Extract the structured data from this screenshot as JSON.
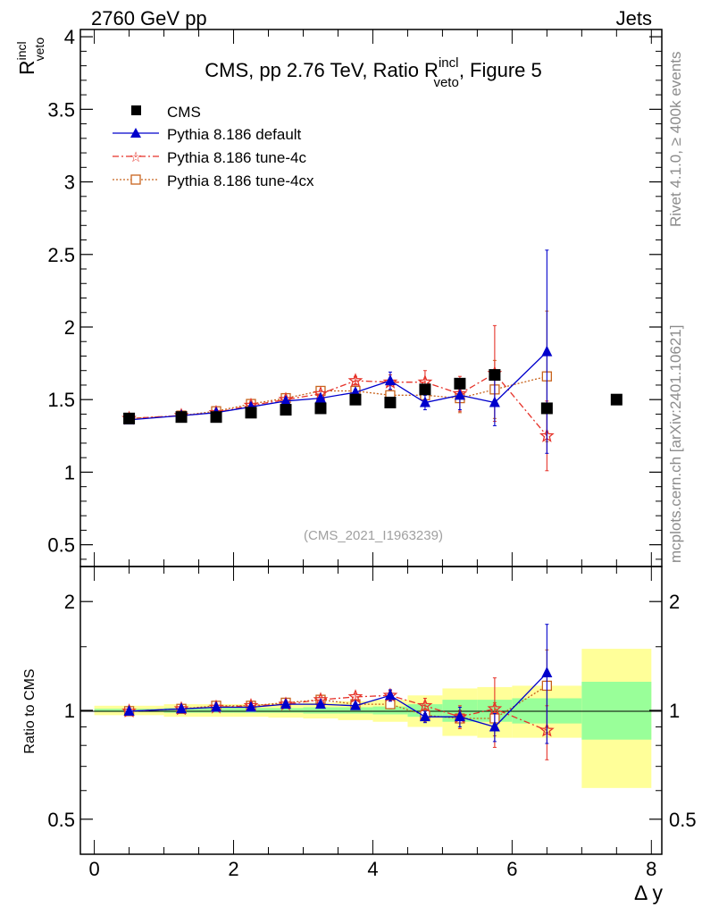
{
  "header": {
    "left": "2760 GeV pp",
    "right": "Jets"
  },
  "side_labels": {
    "rivet": "Rivet 4.1.0, ≥ 400k events",
    "mcplots": "mcplots.cern.ch [arXiv:2401.10621]"
  },
  "colors": {
    "cms": "#000000",
    "default": "#0000cc",
    "tune4c": "#e6332a",
    "tune4cx": "#c8641e",
    "band_inner": "#99ff99",
    "band_outer": "#ffff99"
  },
  "chart_data": [
    {
      "type": "scatter",
      "panel": "main",
      "title_parts": {
        "before": "CMS, pp 2.76 TeV, Ratio R",
        "sup": "incl",
        "sub": "veto",
        "after": ", Figure 5"
      },
      "ylabel": {
        "base": "R",
        "sup": "incl",
        "sub": "veto"
      },
      "ylim": [
        0.35,
        4.05
      ],
      "xlim": [
        -0.2,
        8.15
      ],
      "yticks": [
        0.5,
        1,
        1.5,
        2,
        2.5,
        3,
        3.5,
        4
      ],
      "ytick_labels": [
        "0.5",
        "1",
        "1.5",
        "2",
        "2.5",
        "3",
        "3.5",
        "4"
      ],
      "watermark": "(CMS_2021_I1963239)",
      "legend": {
        "placement": "top-left",
        "entries": [
          "CMS",
          "Pythia 8.186 default",
          "Pythia 8.186 tune-4c",
          "Pythia 8.186 tune-4cx"
        ]
      },
      "series": [
        {
          "name": "CMS",
          "style": "square",
          "x": [
            0.5,
            1.25,
            1.75,
            2.25,
            2.75,
            3.25,
            3.75,
            4.25,
            4.75,
            5.25,
            5.75,
            6.5,
            7.5
          ],
          "values": [
            1.37,
            1.38,
            1.38,
            1.41,
            1.43,
            1.44,
            1.5,
            1.48,
            1.57,
            1.61,
            1.67,
            1.44,
            1.5
          ]
        },
        {
          "name": "Pythia 8.186 default",
          "style": "triangle",
          "x": [
            0.5,
            1.25,
            1.75,
            2.25,
            2.75,
            3.25,
            3.75,
            4.25,
            4.75,
            5.25,
            5.75,
            6.5
          ],
          "values": [
            1.36,
            1.39,
            1.41,
            1.45,
            1.49,
            1.51,
            1.55,
            1.63,
            1.48,
            1.53,
            1.48,
            1.83
          ],
          "errors": [
            0.01,
            0.01,
            0.01,
            0.01,
            0.02,
            0.02,
            0.02,
            0.06,
            0.05,
            0.1,
            0.16,
            0.7
          ]
        },
        {
          "name": "Pythia 8.186 tune-4c",
          "style": "star",
          "x": [
            0.5,
            1.25,
            1.75,
            2.25,
            2.75,
            3.25,
            3.75,
            4.25,
            4.75,
            5.25,
            5.75,
            6.5
          ],
          "values": [
            1.37,
            1.39,
            1.41,
            1.46,
            1.5,
            1.54,
            1.63,
            1.62,
            1.62,
            1.54,
            1.68,
            1.25
          ],
          "errors": [
            0.01,
            0.01,
            0.01,
            0.01,
            0.02,
            0.02,
            0.03,
            0.05,
            0.08,
            0.12,
            0.33,
            0.24
          ]
        },
        {
          "name": "Pythia 8.186 tune-4cx",
          "style": "open-square",
          "x": [
            0.5,
            1.25,
            1.75,
            2.25,
            2.75,
            3.25,
            3.75,
            4.25,
            4.75,
            5.25,
            5.75,
            6.5
          ],
          "values": [
            1.37,
            1.39,
            1.42,
            1.47,
            1.51,
            1.56,
            1.56,
            1.53,
            1.53,
            1.51,
            1.57,
            1.66
          ],
          "errors": [
            0.01,
            0.01,
            0.01,
            0.01,
            0.02,
            0.02,
            0.02,
            0.04,
            0.06,
            0.1,
            0.2,
            0.45
          ]
        }
      ]
    },
    {
      "type": "scatter",
      "panel": "ratio",
      "ylabel": "Ratio to CMS",
      "xlabel": "Δ y",
      "scale": "log",
      "ylim": [
        0.4,
        2.5
      ],
      "xlim": [
        -0.2,
        8.15
      ],
      "yticks": [
        0.5,
        1,
        2
      ],
      "ytick_labels": [
        "0.5",
        "1",
        "2"
      ],
      "xticks": [
        0,
        2,
        4,
        6,
        8
      ],
      "xtick_labels": [
        "0",
        "2",
        "4",
        "6",
        "8"
      ],
      "bands": {
        "edges": [
          0,
          1,
          1.5,
          2,
          2.5,
          3,
          3.5,
          4,
          4.5,
          5,
          5.5,
          6,
          7,
          8
        ],
        "inner": [
          [
            0.99,
            1.01
          ],
          [
            0.985,
            1.015
          ],
          [
            0.985,
            1.015
          ],
          [
            0.985,
            1.015
          ],
          [
            0.985,
            1.015
          ],
          [
            0.98,
            1.02
          ],
          [
            0.98,
            1.02
          ],
          [
            0.975,
            1.025
          ],
          [
            0.96,
            1.04
          ],
          [
            0.93,
            1.07
          ],
          [
            0.93,
            1.07
          ],
          [
            0.92,
            1.08
          ],
          [
            0.83,
            1.2
          ]
        ],
        "outer": [
          [
            0.97,
            1.03
          ],
          [
            0.96,
            1.04
          ],
          [
            0.96,
            1.04
          ],
          [
            0.96,
            1.04
          ],
          [
            0.955,
            1.045
          ],
          [
            0.95,
            1.05
          ],
          [
            0.94,
            1.06
          ],
          [
            0.93,
            1.07
          ],
          [
            0.9,
            1.1
          ],
          [
            0.85,
            1.15
          ],
          [
            0.84,
            1.16
          ],
          [
            0.84,
            1.17
          ],
          [
            0.61,
            1.48
          ]
        ]
      },
      "series": [
        {
          "name": "Pythia 8.186 default",
          "style": "triangle",
          "x": [
            0.5,
            1.25,
            1.75,
            2.25,
            2.75,
            3.25,
            3.75,
            4.25,
            4.75,
            5.25,
            5.75,
            6.5
          ],
          "values": [
            0.995,
            1.01,
            1.02,
            1.02,
            1.04,
            1.04,
            1.03,
            1.1,
            0.96,
            0.96,
            0.9,
            1.27
          ],
          "errors": [
            0.01,
            0.01,
            0.01,
            0.01,
            0.01,
            0.01,
            0.015,
            0.04,
            0.035,
            0.06,
            0.08,
            0.46
          ]
        },
        {
          "name": "Pythia 8.186 tune-4c",
          "style": "star",
          "x": [
            0.5,
            1.25,
            1.75,
            2.25,
            2.75,
            3.25,
            3.75,
            4.25,
            4.75,
            5.25,
            5.75,
            6.5
          ],
          "values": [
            0.995,
            1.01,
            1.02,
            1.03,
            1.04,
            1.07,
            1.09,
            1.1,
            1.03,
            0.96,
            1.01,
            0.88
          ],
          "errors": [
            0.01,
            0.01,
            0.01,
            0.01,
            0.01,
            0.015,
            0.02,
            0.035,
            0.05,
            0.07,
            0.22,
            0.15
          ]
        },
        {
          "name": "Pythia 8.186 tune-4cx",
          "style": "open-square",
          "x": [
            0.5,
            1.25,
            1.75,
            2.25,
            2.75,
            3.25,
            3.75,
            4.25,
            4.75,
            5.25,
            5.75,
            6.5
          ],
          "values": [
            0.995,
            1.01,
            1.03,
            1.03,
            1.05,
            1.07,
            1.04,
            1.04,
            0.97,
            0.95,
            0.95,
            1.17
          ],
          "errors": [
            0.01,
            0.01,
            0.01,
            0.01,
            0.01,
            0.01,
            0.015,
            0.03,
            0.04,
            0.05,
            0.1,
            0.3
          ]
        }
      ]
    }
  ]
}
